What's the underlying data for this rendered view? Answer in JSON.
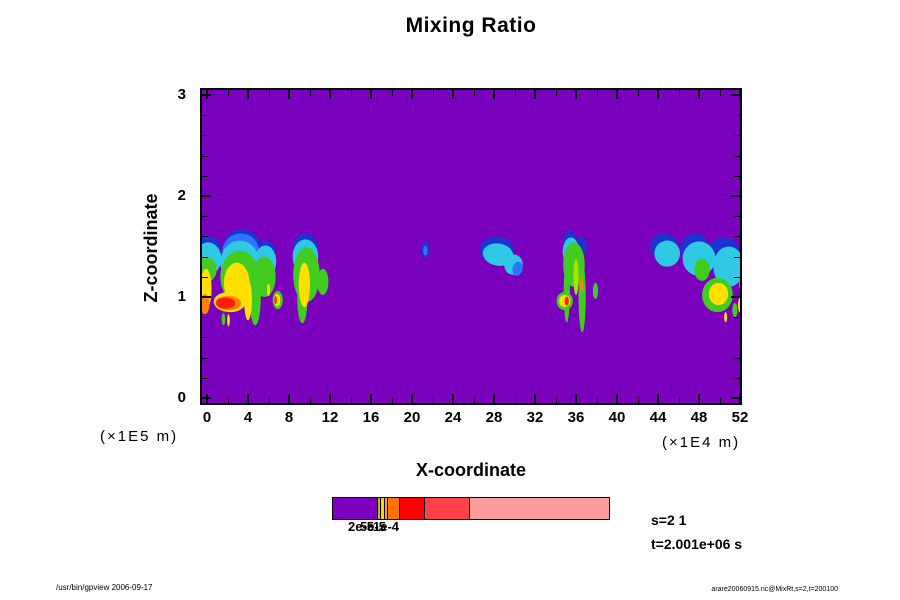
{
  "title": "Mixing Ratio",
  "annotations": {
    "s_label": "s=2 1",
    "t_label": "t=2.001e+06 s"
  },
  "footer": {
    "left": "/usr/bin/gpview 2006-09-17",
    "right": "arare20060915.nc@MixRt,s=2,t=200100"
  },
  "axes": {
    "x": {
      "label": "X-coordinate",
      "units": "(×1E4 m)"
    },
    "y": {
      "label": "Z-coordinate",
      "units": "(×1E5 m)"
    }
  },
  "chart_data": {
    "type": "heatmap",
    "title": "Mixing Ratio",
    "xlabel": "X-coordinate",
    "ylabel": "Z-coordinate",
    "x_units": "(×1E4 m)",
    "y_units": "(×1E5 m)",
    "xlim": [
      0,
      52
    ],
    "ylim": [
      0,
      3
    ],
    "x_major_ticks": [
      0,
      4,
      8,
      12,
      16,
      20,
      24,
      28,
      32,
      36,
      40,
      44,
      48,
      52
    ],
    "x_minor_ticks": [
      2,
      6,
      10,
      14,
      18,
      22,
      26,
      30,
      34,
      38,
      42,
      46,
      50
    ],
    "y_major_ticks": [
      0,
      1,
      2,
      3
    ],
    "y_minor_ticks": [
      0.2,
      0.4,
      0.6,
      0.8,
      1.2,
      1.4,
      1.6,
      1.8,
      2.2,
      2.4,
      2.6,
      2.8
    ],
    "background_color": "#7B00BE",
    "colorbar": {
      "segments": [
        {
          "color": "#7B00BE",
          "width": 45
        },
        {
          "color": "#AFC400",
          "width": 3
        },
        {
          "color": "#FFD300",
          "width": 4
        },
        {
          "color": "#FFA200",
          "width": 3
        },
        {
          "color": "#FF7300",
          "width": 12
        },
        {
          "color": "#FF0000",
          "width": 25
        },
        {
          "color": "#FF4149",
          "width": 45
        },
        {
          "color": "#FF9C9C",
          "width": 139
        }
      ],
      "labels": [
        {
          "text": "2e-5",
          "x": 361
        },
        {
          "text": "5e-5",
          "x": 373
        },
        {
          "text": "1e-4",
          "x": 386
        }
      ]
    },
    "level_colors": {
      "darkblue": "#1E32D2",
      "blue": "#2E74FF",
      "cyan": "#2FC9E6",
      "green": "#42CC1F",
      "yellowgreen": "#A8E000",
      "yellow": "#FFE000",
      "orange": "#FF8200",
      "red": "#FF1E00"
    },
    "blobs": [
      {
        "x": 0.2,
        "z": 1.47,
        "rx": 1.25,
        "rz": 0.13,
        "rot": 0,
        "c": "darkblue"
      },
      {
        "x": 0.1,
        "z": 1.38,
        "rx": 1.3,
        "rz": 0.16,
        "rot": 0,
        "c": "cyan"
      },
      {
        "x": 0.0,
        "z": 1.27,
        "rx": 0.95,
        "rz": 0.12,
        "rot": 0,
        "c": "green"
      },
      {
        "x": -0.1,
        "z": 1.08,
        "rx": 0.55,
        "rz": 0.2,
        "rot": 0,
        "c": "yellow"
      },
      {
        "x": -0.2,
        "z": 0.93,
        "rx": 0.45,
        "rz": 0.1,
        "rot": 0,
        "c": "orange"
      },
      {
        "x": 3.4,
        "z": 1.53,
        "rx": 1.7,
        "rz": 0.14,
        "rot": 0,
        "c": "darkblue"
      },
      {
        "x": 5.7,
        "z": 1.44,
        "rx": 1.0,
        "rz": 0.12,
        "rot": 0,
        "c": "darkblue"
      },
      {
        "x": 3.3,
        "z": 1.45,
        "rx": 1.8,
        "rz": 0.18,
        "rot": 0,
        "c": "blue"
      },
      {
        "x": 3.2,
        "z": 1.34,
        "rx": 1.9,
        "rz": 0.22,
        "rot": 0,
        "c": "cyan"
      },
      {
        "x": 5.7,
        "z": 1.35,
        "rx": 1.05,
        "rz": 0.16,
        "rot": 0,
        "c": "cyan"
      },
      {
        "x": 3.2,
        "z": 1.2,
        "rx": 1.9,
        "rz": 0.26,
        "rot": 0,
        "c": "green"
      },
      {
        "x": 5.6,
        "z": 1.2,
        "rx": 1.1,
        "rz": 0.2,
        "rot": 0,
        "c": "green"
      },
      {
        "x": 4.7,
        "z": 1.0,
        "rx": 0.55,
        "rz": 0.28,
        "rot": 0,
        "c": "green"
      },
      {
        "x": 2.9,
        "z": 1.14,
        "rx": 1.25,
        "rz": 0.2,
        "rot": 0,
        "c": "yellow"
      },
      {
        "x": 4.0,
        "z": 0.97,
        "rx": 0.38,
        "rz": 0.2,
        "rot": 0,
        "c": "yellow"
      },
      {
        "x": 2.2,
        "z": 0.95,
        "rx": 1.55,
        "rz": 0.1,
        "rot": 2,
        "c": "yellow"
      },
      {
        "x": 2.1,
        "z": 0.94,
        "rx": 1.25,
        "rz": 0.07,
        "rot": 2,
        "c": "orange"
      },
      {
        "x": 1.8,
        "z": 0.94,
        "rx": 0.95,
        "rz": 0.055,
        "rot": 2,
        "c": "red"
      },
      {
        "x": 9.6,
        "z": 1.5,
        "rx": 1.15,
        "rz": 0.13,
        "rot": 0,
        "c": "darkblue"
      },
      {
        "x": 9.6,
        "z": 1.4,
        "rx": 1.25,
        "rz": 0.17,
        "rot": 0,
        "c": "cyan"
      },
      {
        "x": 9.7,
        "z": 1.22,
        "rx": 1.3,
        "rz": 0.27,
        "rot": 0,
        "c": "green"
      },
      {
        "x": 9.3,
        "z": 0.98,
        "rx": 0.5,
        "rz": 0.24,
        "rot": 0,
        "c": "green"
      },
      {
        "x": 9.5,
        "z": 1.12,
        "rx": 0.55,
        "rz": 0.22,
        "rot": 0,
        "c": "yellow"
      },
      {
        "x": 11.3,
        "z": 1.15,
        "rx": 0.55,
        "rz": 0.13,
        "rot": 0,
        "c": "green"
      },
      {
        "x": 1.6,
        "z": 0.78,
        "rx": 0.18,
        "rz": 0.06,
        "rot": 0,
        "c": "green"
      },
      {
        "x": 2.1,
        "z": 0.77,
        "rx": 0.14,
        "rz": 0.06,
        "rot": 0,
        "c": "yellow"
      },
      {
        "x": 6.0,
        "z": 1.07,
        "rx": 0.16,
        "rz": 0.06,
        "rot": 0,
        "c": "yellow"
      },
      {
        "x": 6.9,
        "z": 0.97,
        "rx": 0.5,
        "rz": 0.09,
        "rot": 0,
        "c": "green"
      },
      {
        "x": 6.85,
        "z": 0.97,
        "rx": 0.3,
        "rz": 0.06,
        "rot": 0,
        "c": "yellow"
      },
      {
        "x": 6.7,
        "z": 0.97,
        "rx": 0.12,
        "rz": 0.04,
        "rot": 0,
        "c": "red"
      },
      {
        "x": 21.3,
        "z": 1.47,
        "rx": 0.35,
        "rz": 0.08,
        "rot": 0,
        "c": "darkblue"
      },
      {
        "x": 21.3,
        "z": 1.46,
        "rx": 0.2,
        "rz": 0.05,
        "rot": 0,
        "c": "blue"
      },
      {
        "x": 28.3,
        "z": 1.46,
        "rx": 1.7,
        "rz": 0.14,
        "rot": 10,
        "c": "darkblue"
      },
      {
        "x": 28.4,
        "z": 1.42,
        "rx": 1.5,
        "rz": 0.11,
        "rot": 10,
        "c": "cyan"
      },
      {
        "x": 29.9,
        "z": 1.32,
        "rx": 0.9,
        "rz": 0.1,
        "rot": 12,
        "c": "cyan"
      },
      {
        "x": 30.3,
        "z": 1.28,
        "rx": 0.5,
        "rz": 0.07,
        "rot": 12,
        "c": "blue"
      },
      {
        "x": 35.4,
        "z": 1.56,
        "rx": 0.6,
        "rz": 0.1,
        "rot": 0,
        "c": "darkblue"
      },
      {
        "x": 36.5,
        "z": 1.5,
        "rx": 0.55,
        "rz": 0.1,
        "rot": 0,
        "c": "darkblue"
      },
      {
        "x": 35.5,
        "z": 1.45,
        "rx": 0.8,
        "rz": 0.14,
        "rot": 0,
        "c": "cyan"
      },
      {
        "x": 35.8,
        "z": 1.32,
        "rx": 1.05,
        "rz": 0.22,
        "rot": 0,
        "c": "green"
      },
      {
        "x": 35.1,
        "z": 1.05,
        "rx": 0.3,
        "rz": 0.3,
        "rot": 0,
        "c": "green"
      },
      {
        "x": 36.6,
        "z": 1.0,
        "rx": 0.35,
        "rz": 0.35,
        "rot": 0,
        "c": "green"
      },
      {
        "x": 36.0,
        "z": 1.2,
        "rx": 0.25,
        "rz": 0.18,
        "rot": 0,
        "c": "yellowgreen"
      },
      {
        "x": 36.55,
        "z": 1.12,
        "rx": 0.14,
        "rz": 0.08,
        "rot": 0,
        "c": "orange"
      },
      {
        "x": 37.9,
        "z": 1.06,
        "rx": 0.25,
        "rz": 0.08,
        "rot": 0,
        "c": "green"
      },
      {
        "x": 34.9,
        "z": 0.96,
        "rx": 0.8,
        "rz": 0.09,
        "rot": 0,
        "c": "green"
      },
      {
        "x": 34.9,
        "z": 0.96,
        "rx": 0.55,
        "rz": 0.06,
        "rot": 0,
        "c": "yellow"
      },
      {
        "x": 35.1,
        "z": 0.96,
        "rx": 0.2,
        "rz": 0.045,
        "rot": 0,
        "c": "red"
      },
      {
        "x": 44.6,
        "z": 1.5,
        "rx": 1.4,
        "rz": 0.13,
        "rot": 5,
        "c": "darkblue"
      },
      {
        "x": 47.6,
        "z": 1.48,
        "rx": 1.4,
        "rz": 0.15,
        "rot": 0,
        "c": "darkblue"
      },
      {
        "x": 50.4,
        "z": 1.42,
        "rx": 1.6,
        "rz": 0.17,
        "rot": 0,
        "c": "darkblue"
      },
      {
        "x": 44.9,
        "z": 1.43,
        "rx": 1.25,
        "rz": 0.13,
        "rot": 5,
        "c": "cyan"
      },
      {
        "x": 48.0,
        "z": 1.38,
        "rx": 1.6,
        "rz": 0.17,
        "rot": 0,
        "c": "cyan"
      },
      {
        "x": 50.9,
        "z": 1.3,
        "rx": 1.5,
        "rz": 0.2,
        "rot": 0,
        "c": "cyan"
      },
      {
        "x": 48.3,
        "z": 1.27,
        "rx": 0.75,
        "rz": 0.11,
        "rot": 0,
        "c": "green"
      },
      {
        "x": 49.8,
        "z": 1.02,
        "rx": 1.5,
        "rz": 0.17,
        "rot": 0,
        "c": "green"
      },
      {
        "x": 49.9,
        "z": 1.03,
        "rx": 0.95,
        "rz": 0.11,
        "rot": 0,
        "c": "yellow"
      },
      {
        "x": 51.5,
        "z": 0.87,
        "rx": 0.25,
        "rz": 0.07,
        "rot": 0,
        "c": "green"
      },
      {
        "x": 50.6,
        "z": 0.8,
        "rx": 0.15,
        "rz": 0.05,
        "rot": 0,
        "c": "yellow"
      },
      {
        "x": 52.1,
        "z": 0.92,
        "rx": 0.3,
        "rz": 0.08,
        "rot": 0,
        "c": "yellow"
      },
      {
        "x": 52.2,
        "z": 1.15,
        "rx": 0.3,
        "rz": 0.1,
        "rot": 0,
        "c": "green"
      }
    ]
  }
}
